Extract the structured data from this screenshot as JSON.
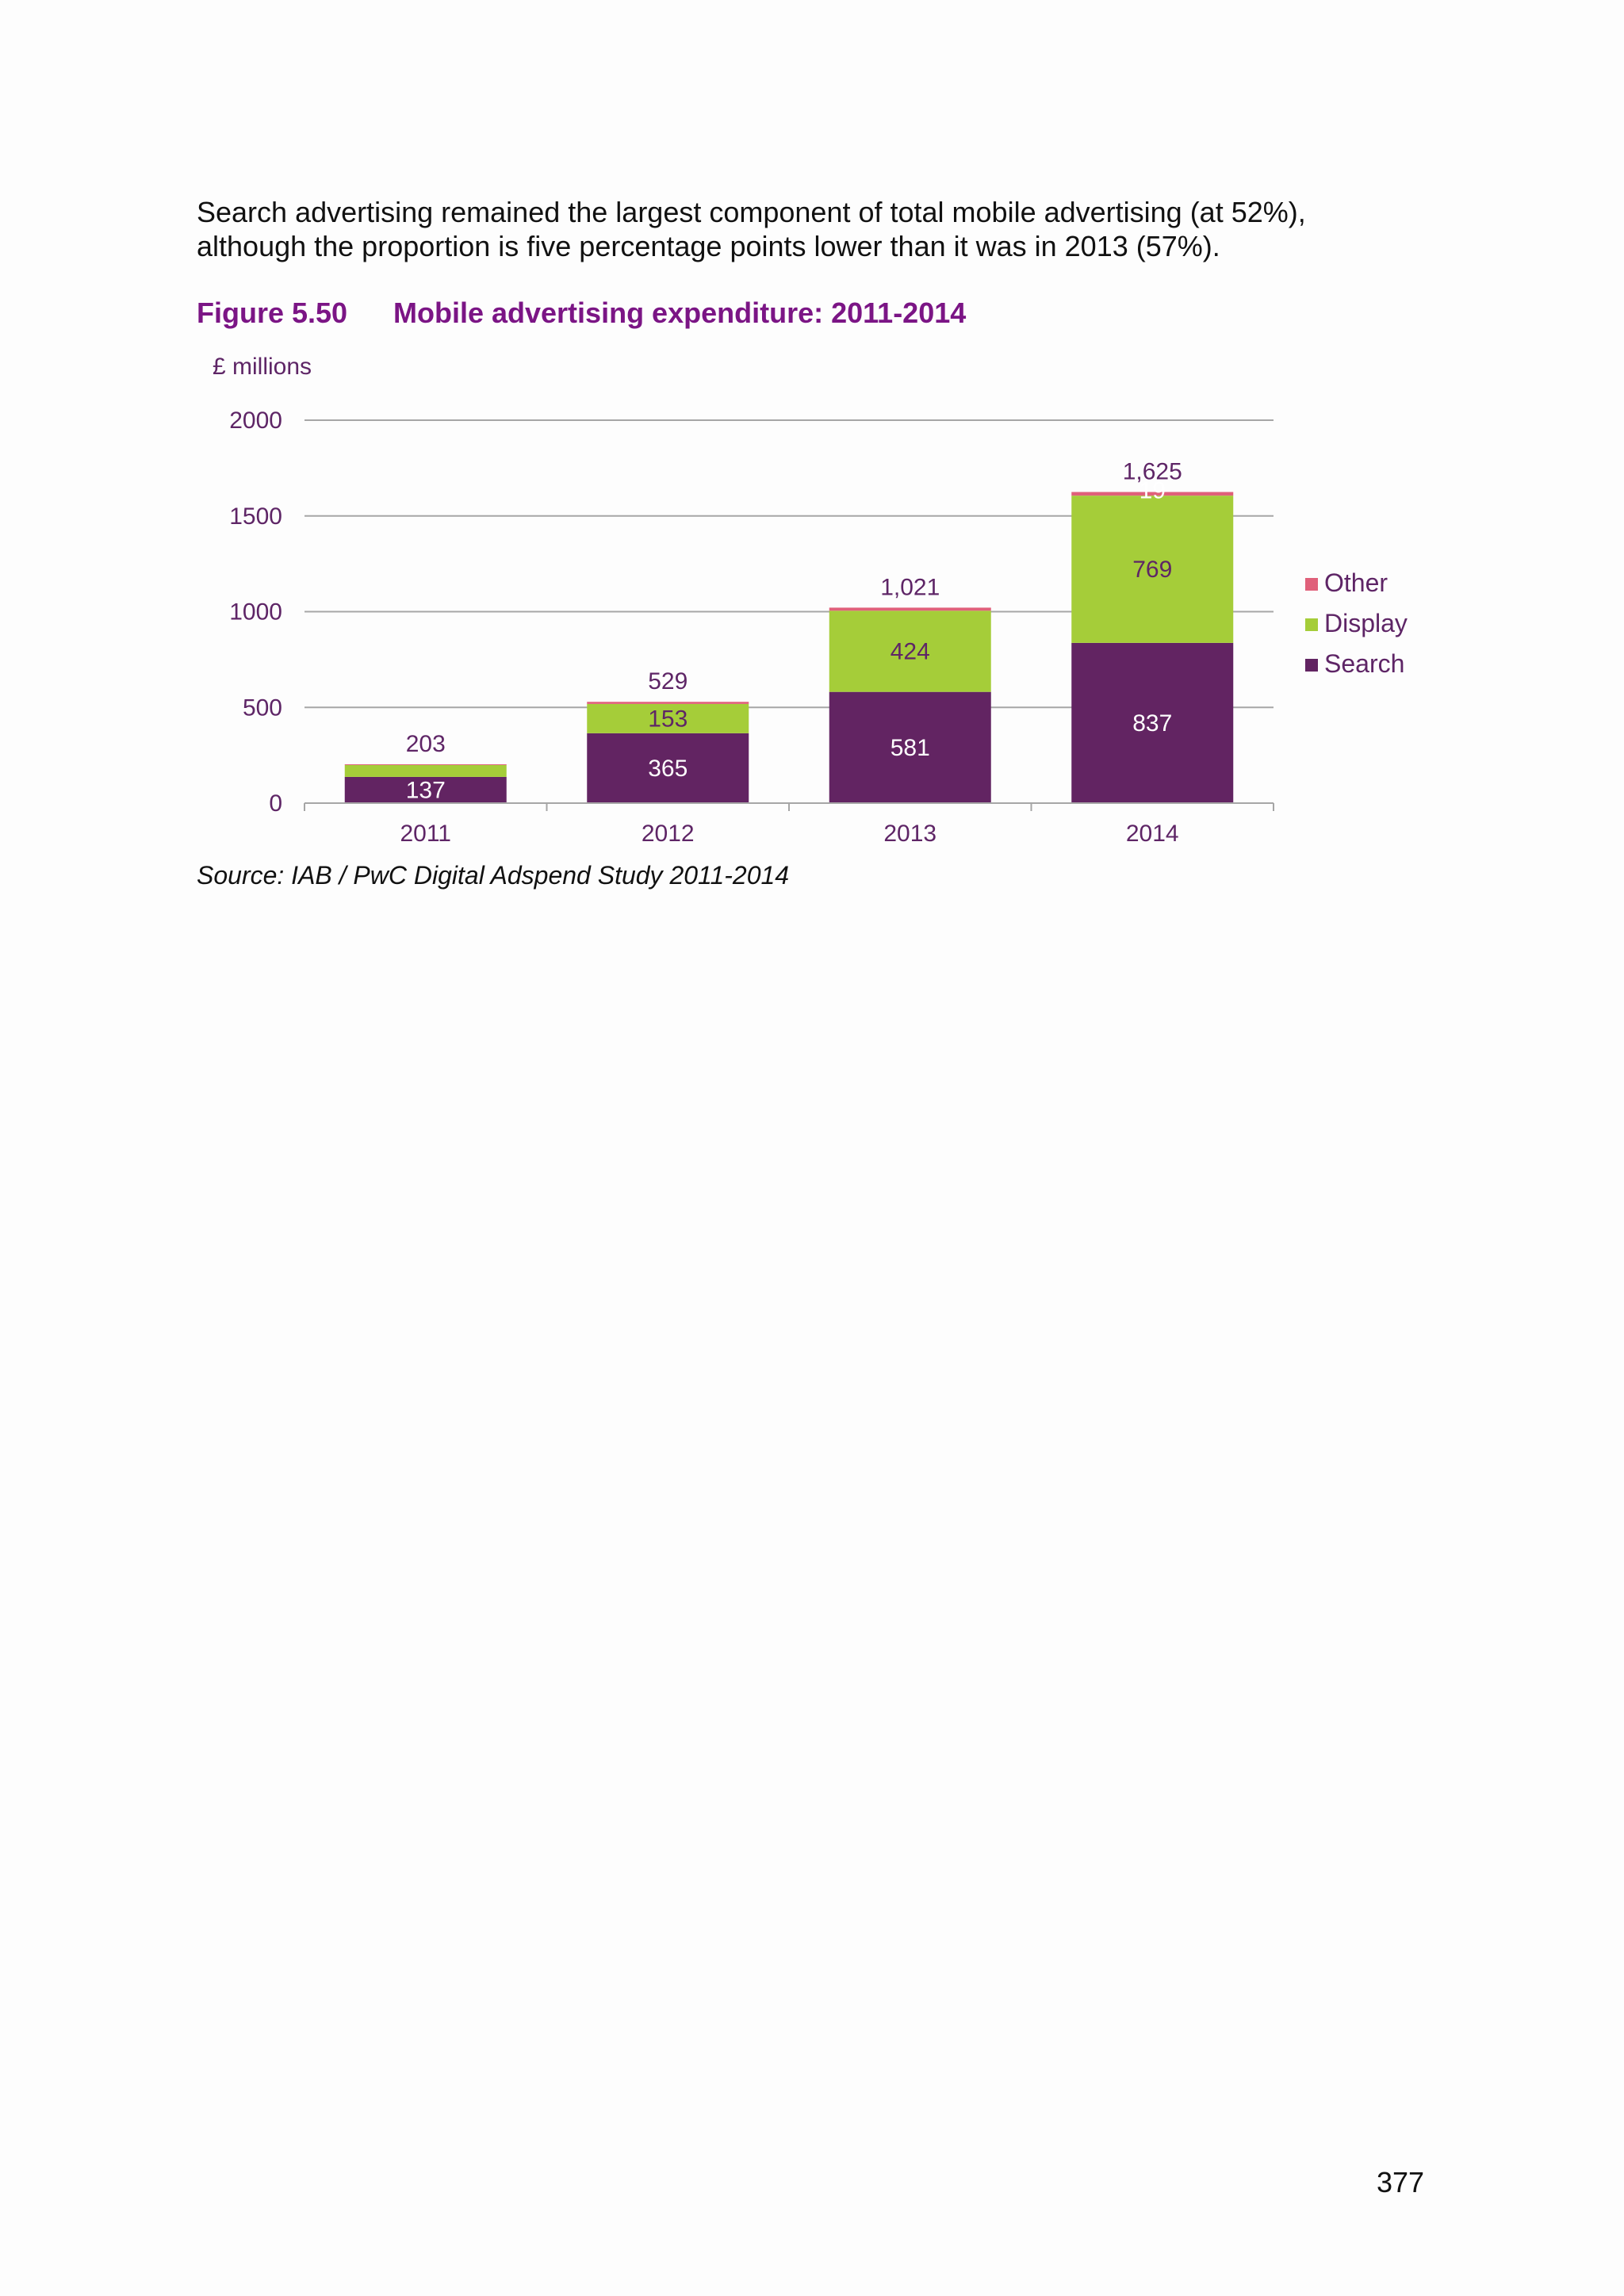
{
  "paragraph": {
    "line1": "Search advertising remained the largest component of total mobile advertising (at 52%),",
    "line2": "although the proportion is five percentage points lower than it was in 2013 (57%)."
  },
  "figure": {
    "number": "Figure 5.50",
    "title": "Mobile advertising expenditure: 2011-2014"
  },
  "source": "Source: IAB / PwC Digital Adspend Study 2011-2014",
  "page_number": "377",
  "colors": {
    "search": "#622462",
    "display": "#a5cd39",
    "other": "#e0607a",
    "axis_text": "#5e2566",
    "grid": "#a6a6a6"
  },
  "chart_data": {
    "type": "bar",
    "stacked": true,
    "ylabel": "£ millions",
    "ylim": [
      0,
      2000
    ],
    "yticks": [
      0,
      500,
      1000,
      1500,
      2000
    ],
    "grid": true,
    "legend_position": "right",
    "categories": [
      "2011",
      "2012",
      "2013",
      "2014"
    ],
    "series": [
      {
        "name": "Search",
        "color": "#622462",
        "values": [
          137,
          365,
          581,
          837
        ],
        "labels": [
          "137",
          "365",
          "581",
          "837"
        ],
        "label_color": "#ffffff"
      },
      {
        "name": "Display",
        "color": "#a5cd39",
        "values": [
          62,
          153,
          424,
          769
        ],
        "labels": [
          "",
          "153",
          "424",
          "769"
        ],
        "label_color": "#5e2566"
      },
      {
        "name": "Other",
        "color": "#e0607a",
        "values": [
          4,
          11,
          16,
          19
        ],
        "labels": [
          "",
          "",
          "",
          "19"
        ],
        "label_color": "#ffffff"
      }
    ],
    "totals": [
      "203",
      "529",
      "1,021",
      "1,625"
    ],
    "legend_order": [
      "Other",
      "Display",
      "Search"
    ]
  }
}
